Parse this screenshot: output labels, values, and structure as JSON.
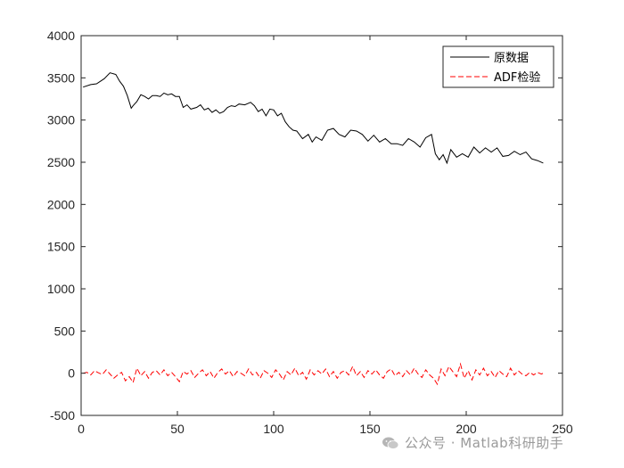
{
  "chart_data": {
    "type": "line",
    "xlim": [
      0,
      250
    ],
    "ylim": [
      -500,
      4000
    ],
    "xticks": [
      0,
      50,
      100,
      150,
      200,
      250
    ],
    "yticks": [
      -500,
      0,
      500,
      1000,
      1500,
      2000,
      2500,
      3000,
      3500,
      4000
    ],
    "grid": false,
    "legend_position": "top-right",
    "series": [
      {
        "name": "原数据",
        "color": "#000000",
        "style": "solid",
        "x": [
          1,
          5,
          8,
          12,
          15,
          18,
          20,
          22,
          24,
          26,
          27,
          29,
          31,
          33,
          35,
          37,
          39,
          41,
          43,
          45,
          47,
          49,
          51,
          53,
          55,
          57,
          60,
          62,
          64,
          66,
          68,
          70,
          72,
          74,
          76,
          78,
          80,
          82,
          85,
          88,
          90,
          92,
          94,
          96,
          98,
          100,
          102,
          104,
          106,
          108,
          110,
          112,
          115,
          118,
          120,
          122,
          125,
          128,
          131,
          134,
          137,
          140,
          143,
          146,
          149,
          152,
          155,
          158,
          161,
          164,
          167,
          170,
          173,
          176,
          179,
          182,
          184,
          186,
          188,
          190,
          192,
          195,
          198,
          201,
          204,
          207,
          210,
          213,
          216,
          219,
          222,
          225,
          228,
          231,
          234,
          237,
          240
        ],
        "values": [
          3390,
          3420,
          3430,
          3490,
          3560,
          3540,
          3460,
          3400,
          3290,
          3140,
          3170,
          3220,
          3300,
          3280,
          3250,
          3290,
          3290,
          3280,
          3320,
          3300,
          3310,
          3280,
          3280,
          3150,
          3180,
          3130,
          3150,
          3180,
          3120,
          3140,
          3090,
          3120,
          3080,
          3100,
          3150,
          3170,
          3160,
          3190,
          3180,
          3210,
          3170,
          3100,
          3130,
          3050,
          3130,
          3120,
          3050,
          3080,
          2980,
          2920,
          2880,
          2870,
          2780,
          2830,
          2740,
          2800,
          2760,
          2880,
          2900,
          2830,
          2800,
          2880,
          2870,
          2830,
          2750,
          2820,
          2740,
          2780,
          2720,
          2720,
          2700,
          2780,
          2740,
          2680,
          2790,
          2830,
          2600,
          2530,
          2590,
          2490,
          2650,
          2560,
          2600,
          2560,
          2680,
          2610,
          2670,
          2620,
          2670,
          2570,
          2580,
          2630,
          2590,
          2620,
          2540,
          2520,
          2490
        ]
      },
      {
        "name": "ADF检验",
        "color": "#ff0000",
        "style": "dashed",
        "x": [
          1,
          3,
          5,
          7,
          9,
          11,
          13,
          15,
          17,
          19,
          21,
          23,
          25,
          27,
          29,
          31,
          33,
          35,
          37,
          39,
          41,
          43,
          45,
          47,
          49,
          51,
          53,
          55,
          57,
          59,
          61,
          63,
          65,
          67,
          69,
          71,
          73,
          75,
          77,
          79,
          81,
          83,
          85,
          87,
          89,
          91,
          93,
          95,
          97,
          99,
          101,
          103,
          105,
          107,
          109,
          111,
          113,
          115,
          117,
          119,
          121,
          123,
          125,
          127,
          129,
          131,
          133,
          135,
          137,
          139,
          141,
          143,
          145,
          147,
          149,
          151,
          153,
          155,
          157,
          159,
          161,
          163,
          165,
          167,
          169,
          171,
          173,
          175,
          177,
          179,
          181,
          183,
          185,
          187,
          189,
          191,
          193,
          195,
          197,
          199,
          201,
          203,
          205,
          207,
          209,
          211,
          213,
          215,
          217,
          219,
          221,
          223,
          225,
          227,
          229,
          231,
          233,
          235,
          237,
          239,
          240
        ],
        "values": [
          0,
          10,
          -20,
          30,
          5,
          -15,
          40,
          -10,
          -60,
          -20,
          10,
          -90,
          -40,
          -110,
          60,
          -30,
          20,
          -60,
          10,
          30,
          -20,
          40,
          -30,
          10,
          -40,
          -100,
          20,
          -10,
          30,
          -50,
          0,
          40,
          -30,
          20,
          -60,
          10,
          50,
          -10,
          30,
          -40,
          20,
          0,
          -30,
          50,
          -20,
          10,
          -60,
          30,
          0,
          -50,
          40,
          -10,
          -80,
          20,
          -20,
          60,
          -30,
          10,
          -70,
          40,
          -20,
          30,
          -10,
          50,
          -40,
          20,
          -60,
          10,
          30,
          -20,
          80,
          -30,
          20,
          -50,
          30,
          -10,
          40,
          -20,
          -60,
          20,
          50,
          -30,
          10,
          -40,
          30,
          -20,
          60,
          -10,
          -50,
          40,
          -20,
          -60,
          -130,
          50,
          -30,
          80,
          20,
          -40,
          110,
          -60,
          30,
          -80,
          40,
          -20,
          60,
          -30,
          20,
          -50,
          30,
          -10,
          -40,
          60,
          -20,
          30,
          -10,
          -30,
          10,
          -20,
          10,
          -10,
          0
        ]
      }
    ]
  },
  "watermark": {
    "text": "公众号 · Matlab科研助手",
    "icon": "wechat-icon"
  }
}
